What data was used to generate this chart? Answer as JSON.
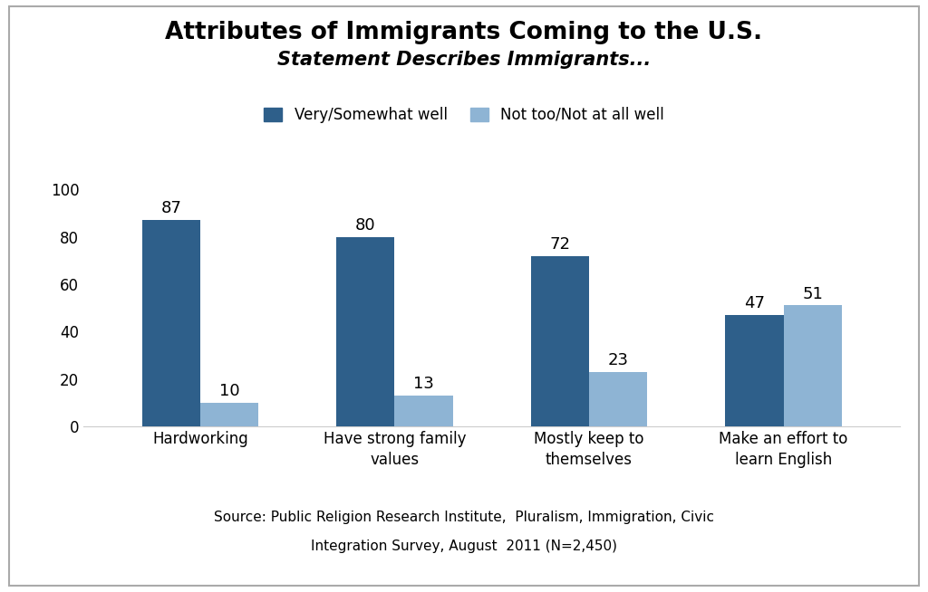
{
  "title": "Attributes of Immigrants Coming to the U.S.",
  "subtitle": "Statement Describes Immigrants...",
  "categories": [
    "Hardworking",
    "Have strong family\nvalues",
    "Mostly keep to\nthemselves",
    "Make an effort to\nlearn English"
  ],
  "very_somewhat": [
    87,
    80,
    72,
    47
  ],
  "not_too_not_at_all": [
    10,
    13,
    23,
    51
  ],
  "color_dark": "#2E5F8A",
  "color_light": "#8EB4D4",
  "legend_labels": [
    "Very/Somewhat well",
    "Not too/Not at all well"
  ],
  "source_line1": "Source: Public Religion Research Institute,  Pluralism, Immigration, Civic",
  "source_line2": "Integration Survey, August  2011 (N=2,450)",
  "ylim": [
    0,
    105
  ],
  "yticks": [
    0,
    20,
    40,
    60,
    80,
    100
  ],
  "bar_width": 0.3,
  "title_fontsize": 19,
  "subtitle_fontsize": 15,
  "tick_fontsize": 12,
  "source_fontsize": 11,
  "legend_fontsize": 12,
  "value_fontsize": 13,
  "background_color": "#FFFFFF",
  "border_color": "#AAAAAA"
}
